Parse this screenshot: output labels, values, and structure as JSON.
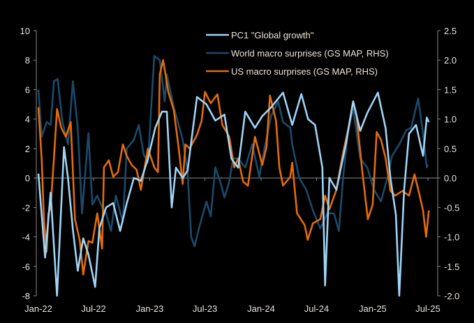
{
  "chart_data": {
    "type": "line",
    "title": "",
    "xlabel": "",
    "ylabel": "",
    "y_left": {
      "range": [
        -8,
        10
      ],
      "ticks": [
        -8,
        -6,
        -4,
        -2,
        0,
        2,
        4,
        6,
        8,
        10
      ],
      "tick_labels": [
        "-8",
        "-6",
        "-4",
        "-2",
        "0",
        "2",
        "4",
        "6",
        "8",
        "10"
      ]
    },
    "y_right": {
      "range": [
        -2.0,
        2.5
      ],
      "ticks": [
        -2.0,
        -1.5,
        -1.0,
        -0.5,
        0.0,
        0.5,
        1.0,
        1.5,
        2.0,
        2.5
      ],
      "tick_labels": [
        "-2.0",
        "-1.5",
        "-1.0",
        "-0.5",
        "0.0",
        "0.5",
        "1.0",
        "1.5",
        "2.0",
        "2.5"
      ]
    },
    "x_axis": {
      "range": [
        "2022-01-01",
        "2025-07-01"
      ],
      "ticks": [
        "2022-01-01",
        "2022-07-01",
        "2023-01-01",
        "2023-07-01",
        "2024-01-01",
        "2024-07-01",
        "2025-01-01",
        "2025-07-01"
      ],
      "tick_labels": [
        "Jan-22",
        "Jul-22",
        "Jan-23",
        "Jul-23",
        "Jan-24",
        "Jul-24",
        "Jan-25",
        "Jul-25"
      ]
    },
    "grid": false,
    "legend_position": "top-center",
    "background": "#000000",
    "series": [
      {
        "name": "PC1 \"Global growth\"",
        "axis": "left",
        "color": "#9fd4f7",
        "points": [
          [
            "2022-01-01",
            0.3
          ],
          [
            "2022-01-23",
            -5.4
          ],
          [
            "2022-02-10",
            -1
          ],
          [
            "2022-03-03",
            -8
          ],
          [
            "2022-03-26",
            2.1
          ],
          [
            "2022-04-08",
            0
          ],
          [
            "2022-04-24",
            -3.5
          ],
          [
            "2022-05-10",
            -6.3
          ],
          [
            "2022-05-28",
            -4.1
          ],
          [
            "2022-06-14",
            -5.2
          ],
          [
            "2022-07-06",
            -7.4
          ],
          [
            "2022-07-20",
            -3.4
          ],
          [
            "2022-08-11",
            -2
          ],
          [
            "2022-09-03",
            -1.7
          ],
          [
            "2022-09-26",
            -3.6
          ],
          [
            "2022-10-18",
            -1.7
          ],
          [
            "2022-11-10",
            0
          ],
          [
            "2022-12-03",
            -0.2
          ],
          [
            "2022-12-26",
            1.3
          ],
          [
            "2023-01-19",
            3.4
          ],
          [
            "2023-02-10",
            4.5
          ],
          [
            "2023-02-26",
            4.5
          ],
          [
            "2023-03-14",
            -2
          ],
          [
            "2023-03-28",
            0.7
          ],
          [
            "2023-04-19",
            0
          ],
          [
            "2023-05-05",
            0.5
          ],
          [
            "2023-06-05",
            5.5
          ],
          [
            "2023-07-06",
            5
          ],
          [
            "2023-08-04",
            3.9
          ],
          [
            "2023-09-03",
            4.3
          ],
          [
            "2023-09-26",
            1.3
          ],
          [
            "2023-10-18",
            0.7
          ],
          [
            "2023-11-10",
            4.5
          ],
          [
            "2023-12-12",
            3.4
          ],
          [
            "2024-01-05",
            4.2
          ],
          [
            "2024-02-03",
            4.8
          ],
          [
            "2024-03-13",
            5.8
          ],
          [
            "2024-04-12",
            3.6
          ],
          [
            "2024-05-12",
            5.7
          ],
          [
            "2024-06-03",
            4
          ],
          [
            "2024-06-26",
            3.6
          ],
          [
            "2024-07-20",
            0.7
          ],
          [
            "2024-07-29",
            -7.3
          ],
          [
            "2024-08-12",
            0
          ],
          [
            "2024-09-04",
            -0.8
          ],
          [
            "2024-10-06",
            2.4
          ],
          [
            "2024-10-29",
            5.2
          ],
          [
            "2024-11-21",
            3.2
          ],
          [
            "2024-12-14",
            4.4
          ],
          [
            "2025-01-18",
            5.8
          ],
          [
            "2025-02-12",
            3.4
          ],
          [
            "2025-02-28",
            0
          ],
          [
            "2025-03-18",
            -2.5
          ],
          [
            "2025-03-29",
            -8
          ],
          [
            "2025-04-14",
            -0.8
          ],
          [
            "2025-04-30",
            3
          ],
          [
            "2025-05-23",
            3.6
          ],
          [
            "2025-06-15",
            1.5
          ],
          [
            "2025-06-27",
            4.1
          ],
          [
            "2025-07-04",
            3.8
          ]
        ]
      },
      {
        "name": "World macro surprises (GS MAP, RHS)",
        "axis": "right",
        "color": "#1b4a6b",
        "points": [
          [
            "2022-01-01",
            1.5
          ],
          [
            "2022-01-12",
            0.7
          ],
          [
            "2022-01-28",
            0.95
          ],
          [
            "2022-02-10",
            0.9
          ],
          [
            "2022-02-21",
            1.64
          ],
          [
            "2022-03-05",
            1.68
          ],
          [
            "2022-03-21",
            0.95
          ],
          [
            "2022-04-08",
            0.57
          ],
          [
            "2022-04-24",
            1.64
          ],
          [
            "2022-05-10",
            0.85
          ],
          [
            "2022-05-24",
            -0.6
          ],
          [
            "2022-06-14",
            0.76
          ],
          [
            "2022-06-27",
            -0.45
          ],
          [
            "2022-07-13",
            -0.3
          ],
          [
            "2022-07-29",
            -0.5
          ],
          [
            "2022-08-11",
            -0.6
          ],
          [
            "2022-08-27",
            -0.9
          ],
          [
            "2022-09-12",
            -0.3
          ],
          [
            "2022-10-05",
            -0.75
          ],
          [
            "2022-10-18",
            0.5
          ],
          [
            "2022-11-10",
            0.65
          ],
          [
            "2022-11-26",
            0.9
          ],
          [
            "2022-12-12",
            0.4
          ],
          [
            "2022-12-26",
            0.26
          ],
          [
            "2023-01-16",
            2.07
          ],
          [
            "2023-02-03",
            2.0
          ],
          [
            "2023-02-19",
            1.3
          ],
          [
            "2023-02-26",
            1.76
          ],
          [
            "2023-03-21",
            1.2
          ],
          [
            "2023-04-06",
            0.9
          ],
          [
            "2023-04-19",
            0.65
          ],
          [
            "2023-05-05",
            0.1
          ],
          [
            "2023-05-17",
            -1.0
          ],
          [
            "2023-05-28",
            -1.16
          ],
          [
            "2023-06-14",
            -0.8
          ],
          [
            "2023-07-06",
            -0.4
          ],
          [
            "2023-07-20",
            -0.65
          ],
          [
            "2023-08-04",
            0.18
          ],
          [
            "2023-08-20",
            -0.06
          ],
          [
            "2023-09-03",
            -0.33
          ],
          [
            "2023-09-19",
            -0.06
          ],
          [
            "2023-10-01",
            0.33
          ],
          [
            "2023-10-18",
            0.33
          ],
          [
            "2023-11-10",
            0.18
          ],
          [
            "2023-12-03",
            0.57
          ],
          [
            "2023-12-26",
            0.02
          ],
          [
            "2024-01-12",
            0.5
          ],
          [
            "2024-02-03",
            1.05
          ],
          [
            "2024-02-26",
            1.3
          ],
          [
            "2024-03-13",
            0.95
          ],
          [
            "2024-04-06",
            0.85
          ],
          [
            "2024-04-12",
            0.57
          ],
          [
            "2024-05-05",
            0
          ],
          [
            "2024-05-28",
            -0.2
          ],
          [
            "2024-06-19",
            -0.55
          ],
          [
            "2024-07-13",
            -0.86
          ],
          [
            "2024-08-05",
            -0.6
          ],
          [
            "2024-08-27",
            -0.6
          ],
          [
            "2024-09-12",
            -0.9
          ],
          [
            "2024-09-26",
            0
          ],
          [
            "2024-10-12",
            0.81
          ],
          [
            "2024-10-29",
            1.17
          ],
          [
            "2024-11-21",
            0.33
          ],
          [
            "2024-12-14",
            0.18
          ],
          [
            "2025-01-05",
            -0.2
          ],
          [
            "2025-01-28",
            -0.4
          ],
          [
            "2025-02-21",
            0.06
          ],
          [
            "2025-03-05",
            0.37
          ],
          [
            "2025-03-29",
            0.57
          ],
          [
            "2025-04-21",
            0.81
          ],
          [
            "2025-05-07",
            0.85
          ],
          [
            "2025-05-30",
            1.35
          ],
          [
            "2025-06-15",
            0.76
          ],
          [
            "2025-06-27",
            0.18
          ],
          [
            "2025-07-01",
            0.22
          ]
        ]
      },
      {
        "name": "US macro surprises (GS MAP, RHS)",
        "axis": "right",
        "color": "#e36c0a",
        "points": [
          [
            "2022-01-01",
            1.2
          ],
          [
            "2022-01-12",
            0.3
          ],
          [
            "2022-01-19",
            -0.7
          ],
          [
            "2022-01-28",
            -1.25
          ],
          [
            "2022-02-03",
            -0.6
          ],
          [
            "2022-02-10",
            -0.5
          ],
          [
            "2022-02-21",
            0.34
          ],
          [
            "2022-03-03",
            1.17
          ],
          [
            "2022-03-17",
            0.85
          ],
          [
            "2022-04-01",
            0.7
          ],
          [
            "2022-04-17",
            0.95
          ],
          [
            "2022-05-01",
            -0.7
          ],
          [
            "2022-05-17",
            -1.07
          ],
          [
            "2022-05-28",
            -1.64
          ],
          [
            "2022-06-14",
            -1.07
          ],
          [
            "2022-06-27",
            -1.1
          ],
          [
            "2022-07-13",
            -0.6
          ],
          [
            "2022-07-29",
            -1.2
          ],
          [
            "2022-08-04",
            0.18
          ],
          [
            "2022-08-20",
            0.3
          ],
          [
            "2022-09-03",
            0.02
          ],
          [
            "2022-09-19",
            0.1
          ],
          [
            "2022-10-05",
            0.57
          ],
          [
            "2022-10-18",
            0.37
          ],
          [
            "2022-11-03",
            0.22
          ],
          [
            "2022-11-19",
            0.14
          ],
          [
            "2022-12-03",
            -0.2
          ],
          [
            "2022-12-26",
            0.5
          ],
          [
            "2023-01-16",
            0.18
          ],
          [
            "2023-01-28",
            0.1
          ],
          [
            "2023-02-03",
            1.76
          ],
          [
            "2023-02-14",
            2.0
          ],
          [
            "2023-03-03",
            1.46
          ],
          [
            "2023-03-21",
            1.15
          ],
          [
            "2023-04-06",
            0.5
          ],
          [
            "2023-04-19",
            -0.1
          ],
          [
            "2023-04-28",
            0.57
          ],
          [
            "2023-05-12",
            0.5
          ],
          [
            "2023-06-05",
            0.73
          ],
          [
            "2023-06-20",
            0.97
          ],
          [
            "2023-07-01",
            1.46
          ],
          [
            "2023-07-20",
            1.27
          ],
          [
            "2023-08-11",
            1.42
          ],
          [
            "2023-08-27",
            0.9
          ],
          [
            "2023-09-19",
            0.7
          ],
          [
            "2023-10-05",
            0.18
          ],
          [
            "2023-10-18",
            0.33
          ],
          [
            "2023-11-03",
            -0.06
          ],
          [
            "2023-11-19",
            -0.13
          ],
          [
            "2023-12-12",
            0.7
          ],
          [
            "2024-01-05",
            0.22
          ],
          [
            "2024-01-19",
            0.53
          ],
          [
            "2024-01-30",
            1.4
          ],
          [
            "2024-02-19",
            0.97
          ],
          [
            "2024-03-01",
            0.18
          ],
          [
            "2024-03-13",
            -0.13
          ],
          [
            "2024-04-06",
            0.02
          ],
          [
            "2024-04-12",
            0.26
          ],
          [
            "2024-04-28",
            -0.6
          ],
          [
            "2024-05-23",
            -0.8
          ],
          [
            "2024-06-02",
            -1.05
          ],
          [
            "2024-06-19",
            -0.77
          ],
          [
            "2024-07-13",
            -0.7
          ],
          [
            "2024-07-29",
            -0.3
          ],
          [
            "2024-08-12",
            -0.53
          ],
          [
            "2024-09-04",
            -0.2
          ],
          [
            "2024-09-26",
            0.43
          ],
          [
            "2024-10-12",
            0.81
          ],
          [
            "2024-10-29",
            1.3
          ],
          [
            "2024-11-09",
            1.05
          ],
          [
            "2024-11-28",
            0.1
          ],
          [
            "2024-12-16",
            -0.7
          ],
          [
            "2025-01-01",
            -0.45
          ],
          [
            "2025-01-14",
            0.78
          ],
          [
            "2025-01-28",
            0.65
          ],
          [
            "2025-02-12",
            0.34
          ],
          [
            "2025-02-28",
            -0.22
          ],
          [
            "2025-03-16",
            -0.3
          ],
          [
            "2025-04-08",
            -0.22
          ],
          [
            "2025-04-30",
            -0.3
          ],
          [
            "2025-05-18",
            0.06
          ],
          [
            "2025-06-04",
            -0.3
          ],
          [
            "2025-06-15",
            -0.55
          ],
          [
            "2025-06-25",
            -1.0
          ],
          [
            "2025-07-04",
            -0.55
          ]
        ]
      }
    ]
  }
}
